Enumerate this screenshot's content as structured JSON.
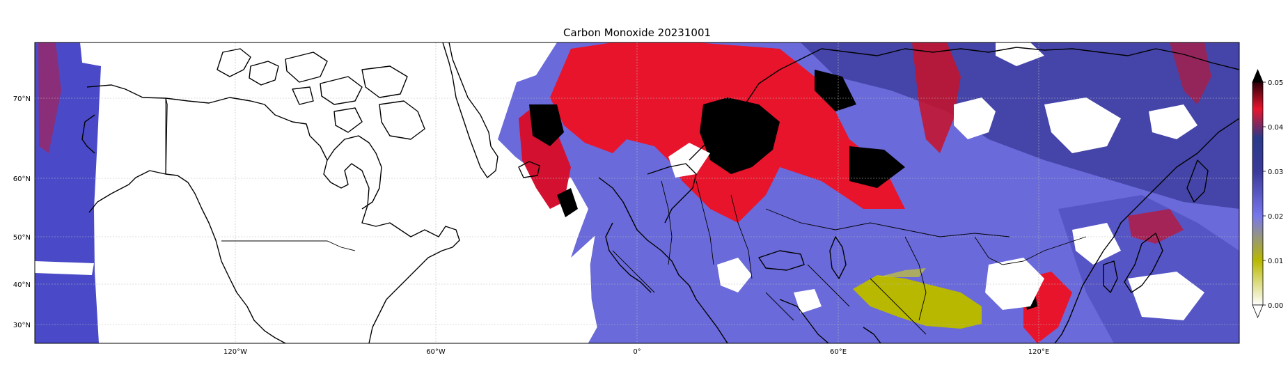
{
  "map": {
    "title": "Carbon Monoxide 20231001",
    "lat_labels": [
      "70°N",
      "60°N",
      "50°N",
      "40°N",
      "30°N"
    ],
    "lon_labels": [
      "120°W",
      "60°W",
      "0°",
      "60°E",
      "120°E"
    ],
    "lon_extent": [
      -180,
      180
    ],
    "lat_extent": [
      26,
      80
    ],
    "colors": {
      "background": "#ffffff",
      "coastline": "#000000",
      "border": "#000000",
      "grid": "#cccccc",
      "low_purple": "#6e6ee0",
      "mid_navy": "#2a3a8a",
      "high_red": "#e8142c",
      "extreme_black": "#000000",
      "olive": "#b8b800"
    },
    "regions": [
      {
        "name": "western-strip",
        "color": "#4a4ac8"
      },
      {
        "name": "atlantic-europe-swath",
        "color": "#6a6ada"
      },
      {
        "name": "russia-eurasia",
        "color": "#5656c8"
      },
      {
        "name": "east-asia",
        "color": "#6e6ee0"
      }
    ],
    "hotspots": [
      {
        "name": "scandinavia-plume",
        "color": "#e8142c"
      },
      {
        "name": "ural-plume",
        "color": "#d01028"
      },
      {
        "name": "tibet-plateau",
        "color": "#b8b800"
      }
    ]
  },
  "colorbar": {
    "ticks": [
      "0.05",
      "0.04",
      "0.03",
      "0.02",
      "0.01",
      "0.00"
    ],
    "stops": [
      "#ffffff",
      "#b8b800",
      "#7777ee",
      "#2a3a8a",
      "#e8142c",
      "#000000"
    ],
    "extend": "both"
  }
}
